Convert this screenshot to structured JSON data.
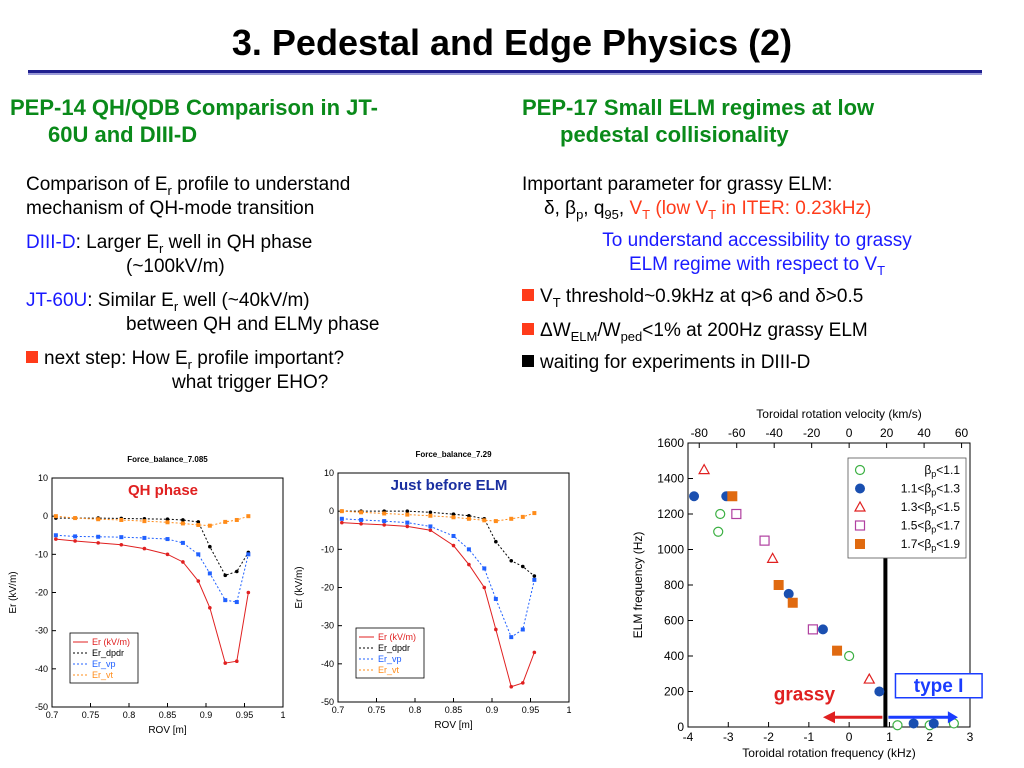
{
  "title": "3. Pedestal and Edge Physics (2)",
  "left": {
    "heading_line1": "PEP-14 QH/QDB Comparison in JT-",
    "heading_line2": "60U and DIII-D",
    "p1_a": "Comparison of E",
    "p1_sub": "r",
    "p1_b": " profile to understand",
    "p1_line2": "mechanism of QH-mode transition",
    "diii_label": "DIII-D",
    "diii_a": ": Larger E",
    "diii_sub": "r",
    "diii_b": " well in QH phase",
    "diii_line2": "(~100kV/m)",
    "jt_label": "JT-60U",
    "jt_a": ": Similar E",
    "jt_sub": "r",
    "jt_b": " well (~40kV/m)",
    "jt_line2": "between QH and ELMy phase",
    "next_a": "next step: How E",
    "next_sub": "r",
    "next_b": " profile important?",
    "next_line2": "what trigger EHO?",
    "bullet_color": "#ff3b1a"
  },
  "right": {
    "heading_line1": "PEP-17 Small ELM regimes at low",
    "heading_line2": "pedestal collisionality",
    "p1": "Important parameter for grassy ELM:",
    "params_a": "δ, β",
    "params_sub1": "p",
    "params_b": ", q",
    "params_sub2": "95",
    "params_c": ", ",
    "vt_v": "V",
    "vt_sub": "T",
    "vt_rest_a": " (low V",
    "vt_rest_sub": "T",
    "vt_rest_b": " in ITER: 0.23kHz)",
    "goal_line1": "To understand accessibility to grassy",
    "goal_line2_a": "ELM regime with respect to V",
    "goal_line2_sub": "T",
    "b1_a": "V",
    "b1_sub": "T",
    "b1_b": " threshold~0.9kHz at q>6 and δ>0.5",
    "b2_a": "ΔW",
    "b2_sub1": "ELM",
    "b2_b": "/W",
    "b2_sub2": "ped",
    "b2_c": "<1% at 200Hz grassy ELM",
    "b3": "waiting for experiments in DIII-D"
  },
  "chart_data": [
    {
      "type": "line",
      "title": "Force_balance_7.085",
      "annotation": "QH phase",
      "xlabel": "ROV [m]",
      "ylabel": "Er (kV/m)",
      "xlim": [
        0.7,
        1.0
      ],
      "ylim": [
        -50,
        10
      ],
      "xticks": [
        "0.7",
        "0.75",
        "0.8",
        "0.85",
        "0.9",
        "0.95",
        "1"
      ],
      "yticks": [
        "10",
        "0",
        "-10",
        "-20",
        "-30",
        "-40",
        "-50"
      ],
      "legend": [
        "Er (kV/m)",
        "Er_dpdr",
        "Er_vp",
        "Er_vt"
      ],
      "series": [
        {
          "name": "Er (kV/m)",
          "color": "#e02020",
          "x": [
            0.705,
            0.73,
            0.76,
            0.79,
            0.82,
            0.85,
            0.87,
            0.89,
            0.905,
            0.925,
            0.94,
            0.955
          ],
          "y": [
            -6,
            -6.5,
            -7,
            -7.5,
            -8.5,
            -10,
            -12,
            -17,
            -24,
            -38.5,
            -38,
            -20
          ]
        },
        {
          "name": "Er_dpdr",
          "color": "#000000",
          "x": [
            0.705,
            0.73,
            0.76,
            0.79,
            0.82,
            0.85,
            0.87,
            0.89,
            0.905,
            0.925,
            0.94,
            0.955
          ],
          "y": [
            -0.5,
            -0.5,
            -0.5,
            -0.6,
            -0.7,
            -0.8,
            -1,
            -1.5,
            -8,
            -15.5,
            -14.5,
            -9.5
          ]
        },
        {
          "name": "Er_vp",
          "color": "#2060ff",
          "x": [
            0.705,
            0.73,
            0.76,
            0.79,
            0.82,
            0.85,
            0.87,
            0.89,
            0.905,
            0.925,
            0.94,
            0.955
          ],
          "y": [
            -5,
            -5.3,
            -5.4,
            -5.5,
            -5.7,
            -6,
            -7,
            -10,
            -15,
            -22,
            -22.5,
            -10
          ]
        },
        {
          "name": "Er_vt",
          "color": "#ff8c1a",
          "x": [
            0.705,
            0.73,
            0.76,
            0.79,
            0.82,
            0.85,
            0.87,
            0.89,
            0.905,
            0.925,
            0.94,
            0.955
          ],
          "y": [
            0,
            -0.5,
            -0.8,
            -1,
            -1.3,
            -1.6,
            -1.9,
            -2.3,
            -2.5,
            -1.5,
            -1,
            0
          ]
        }
      ]
    },
    {
      "type": "line",
      "title": "Force_balance_7.29",
      "annotation": "Just before ELM",
      "xlabel": "ROV [m]",
      "ylabel": "Er (kV/m)",
      "xlim": [
        0.7,
        1.0
      ],
      "ylim": [
        -50,
        10
      ],
      "xticks": [
        "0.7",
        "0.75",
        "0.8",
        "0.85",
        "0.9",
        "0.95",
        "1"
      ],
      "yticks": [
        "10",
        "0",
        "-10",
        "-20",
        "-30",
        "-40",
        "-50"
      ],
      "legend": [
        "Er (kV/m)",
        "Er_dpdr",
        "Er_vp",
        "Er_vt"
      ],
      "series": [
        {
          "name": "Er (kV/m)",
          "color": "#e02020",
          "x": [
            0.705,
            0.73,
            0.76,
            0.79,
            0.82,
            0.85,
            0.87,
            0.89,
            0.905,
            0.925,
            0.94,
            0.955
          ],
          "y": [
            -3,
            -3.3,
            -3.6,
            -4,
            -5,
            -9,
            -14,
            -20,
            -31,
            -46,
            -45,
            -37
          ]
        },
        {
          "name": "Er_dpdr",
          "color": "#000000",
          "x": [
            0.705,
            0.73,
            0.76,
            0.79,
            0.82,
            0.85,
            0.87,
            0.89,
            0.905,
            0.925,
            0.94,
            0.955
          ],
          "y": [
            0,
            0,
            0,
            0,
            -0.3,
            -0.8,
            -1.2,
            -2,
            -8,
            -13,
            -14.5,
            -17
          ]
        },
        {
          "name": "Er_vp",
          "color": "#2060ff",
          "x": [
            0.705,
            0.73,
            0.76,
            0.79,
            0.82,
            0.85,
            0.87,
            0.89,
            0.905,
            0.925,
            0.94,
            0.955
          ],
          "y": [
            -2,
            -2.3,
            -2.6,
            -3,
            -4,
            -6.5,
            -10,
            -15,
            -23,
            -33,
            -31,
            -18
          ]
        },
        {
          "name": "Er_vt",
          "color": "#ff8c1a",
          "x": [
            0.705,
            0.73,
            0.76,
            0.79,
            0.82,
            0.85,
            0.87,
            0.89,
            0.905,
            0.925,
            0.94,
            0.955
          ],
          "y": [
            0,
            -0.3,
            -0.6,
            -0.9,
            -1.2,
            -1.6,
            -2,
            -2.4,
            -2.6,
            -2,
            -1.5,
            -0.5
          ]
        }
      ]
    },
    {
      "type": "scatter",
      "title": "Toroidal rotation velocity (km/s)",
      "xlabel": "Toroidal rotation frequency (kHz)",
      "ylabel": "ELM frequency (Hz)",
      "xlim": [
        -4,
        3
      ],
      "ylim": [
        0,
        1600
      ],
      "xticks": [
        "-4",
        "-3",
        "-2",
        "-1",
        "0",
        "1",
        "2",
        "3"
      ],
      "yticks": [
        "0",
        "200",
        "400",
        "600",
        "800",
        "1000",
        "1200",
        "1400",
        "1600"
      ],
      "top_axis_ticks": [
        "-80",
        "-60",
        "-40",
        "-20",
        "0",
        "20",
        "40",
        "60"
      ],
      "threshold_x": 0.9,
      "label_grassy": "grassy",
      "label_typeI": "type I",
      "grassy_color": "#e02020",
      "typeI_color": "#1a3cff",
      "legend": [
        {
          "a": "β",
          "sub": "p",
          "b": "<1.1"
        },
        {
          "a": "1.1<β",
          "sub": "p",
          "b": "<1.3"
        },
        {
          "a": "1.3<β",
          "sub": "p",
          "b": "<1.5"
        },
        {
          "a": "1.5<β",
          "sub": "p",
          "b": "<1.7"
        },
        {
          "a": "1.7<β",
          "sub": "p",
          "b": "<1.9"
        }
      ],
      "series": [
        {
          "name": "βp<1.1",
          "marker": "circle-open",
          "color": "#3cb043",
          "x": [
            -3.2,
            -3.25,
            0,
            1.2,
            2.0,
            2.6
          ],
          "y": [
            1200,
            1100,
            400,
            10,
            10,
            20
          ]
        },
        {
          "name": "1.1<βp<1.3",
          "marker": "circle",
          "color": "#1a4fb0",
          "x": [
            -3.85,
            -3.05,
            -1.5,
            -0.65,
            0.75,
            1.6,
            2.1
          ],
          "y": [
            1300,
            1300,
            750,
            550,
            200,
            20,
            20
          ]
        },
        {
          "name": "1.3<βp<1.5",
          "marker": "triangle-open",
          "color": "#e02020",
          "x": [
            -3.6,
            -1.9,
            0.5
          ],
          "y": [
            1450,
            950,
            270
          ]
        },
        {
          "name": "1.5<βp<1.7",
          "marker": "square-open",
          "color": "#b040a0",
          "x": [
            -2.8,
            -2.1,
            -0.9
          ],
          "y": [
            1200,
            1050,
            550
          ]
        },
        {
          "name": "1.7<βp<1.9",
          "marker": "square",
          "color": "#e06a10",
          "x": [
            -2.9,
            -1.75,
            -1.4,
            -0.3
          ],
          "y": [
            1300,
            800,
            700,
            430
          ]
        }
      ]
    }
  ]
}
